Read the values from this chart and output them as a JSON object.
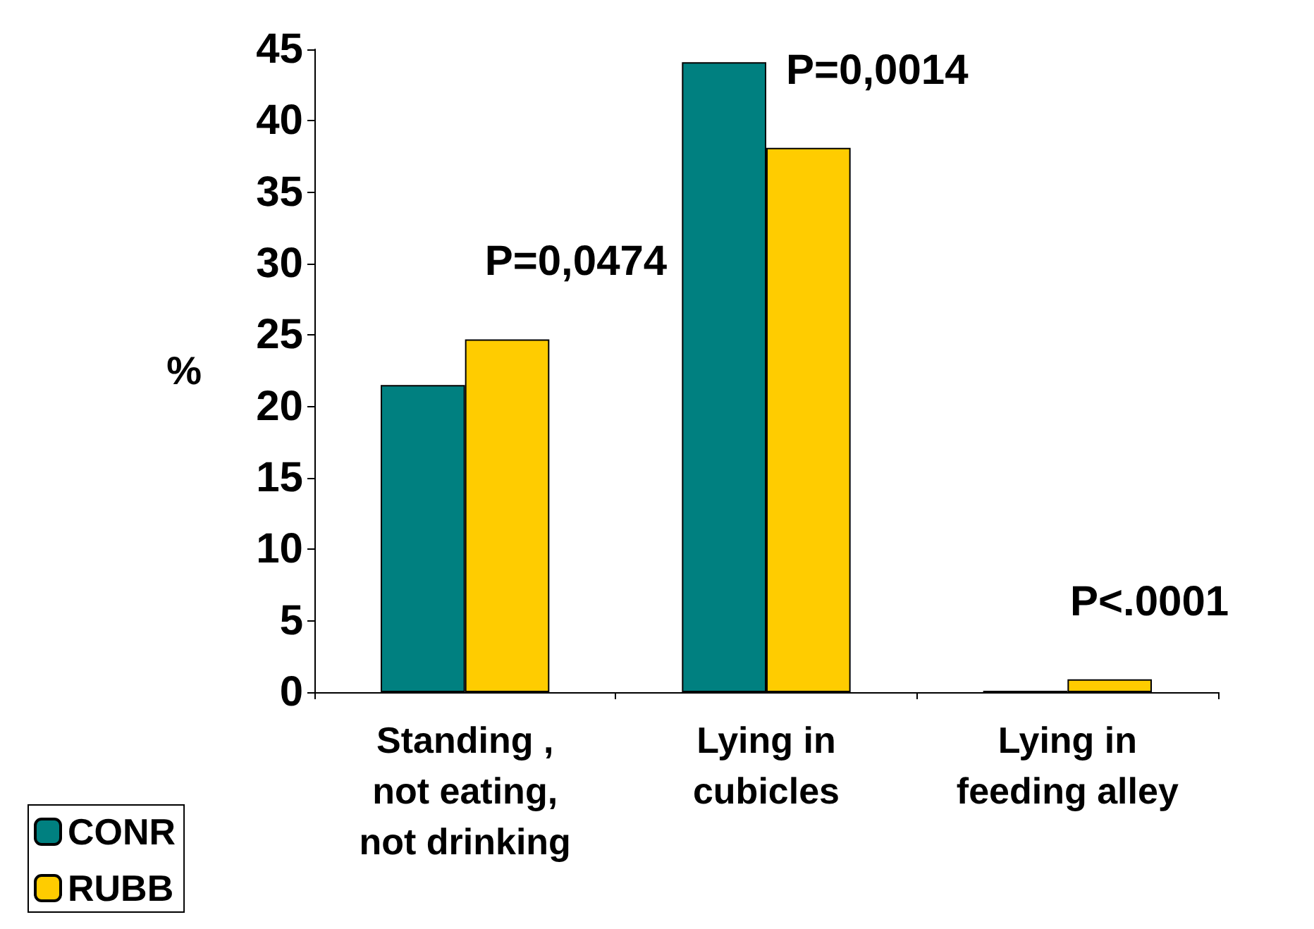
{
  "chart_data": {
    "type": "bar",
    "ylabel": "%",
    "categories": [
      "Standing ,\nnot eating,\nnot drinking",
      "Lying in\ncubicles",
      "Lying in\nfeeding alley"
    ],
    "series": [
      {
        "name": "CONR",
        "color": "#008080",
        "values": [
          21.5,
          44.1,
          0.1
        ]
      },
      {
        "name": "RUBB",
        "color": "#ffcc00",
        "values": [
          24.7,
          38.1,
          0.9
        ]
      }
    ],
    "ylim": [
      0,
      45
    ],
    "yticks": [
      0,
      5,
      10,
      15,
      20,
      25,
      30,
      35,
      40,
      45
    ],
    "grid": false,
    "legend": "bottom left",
    "annotations": [
      "P=0,0474",
      "P=0,0014",
      "P<.0001"
    ]
  }
}
